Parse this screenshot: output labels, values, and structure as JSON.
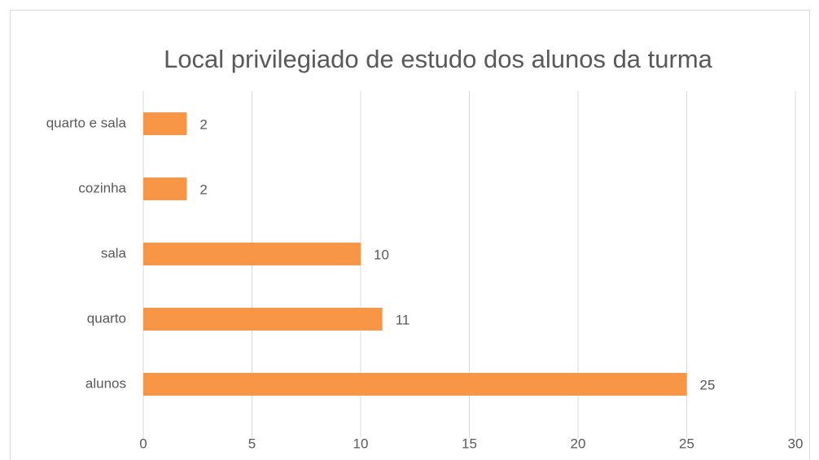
{
  "chart_data": {
    "type": "bar",
    "orientation": "horizontal",
    "title": "Local privilegiado de estudo dos alunos da turma",
    "categories": [
      "alunos",
      "quarto",
      "sala",
      "cozinha",
      "quarto e sala"
    ],
    "values": [
      25,
      11,
      10,
      2,
      2
    ],
    "color": "#f79646",
    "xlim": [
      0,
      30
    ],
    "xticks": [
      0,
      5,
      10,
      15,
      20,
      25,
      30
    ],
    "grid": true
  }
}
